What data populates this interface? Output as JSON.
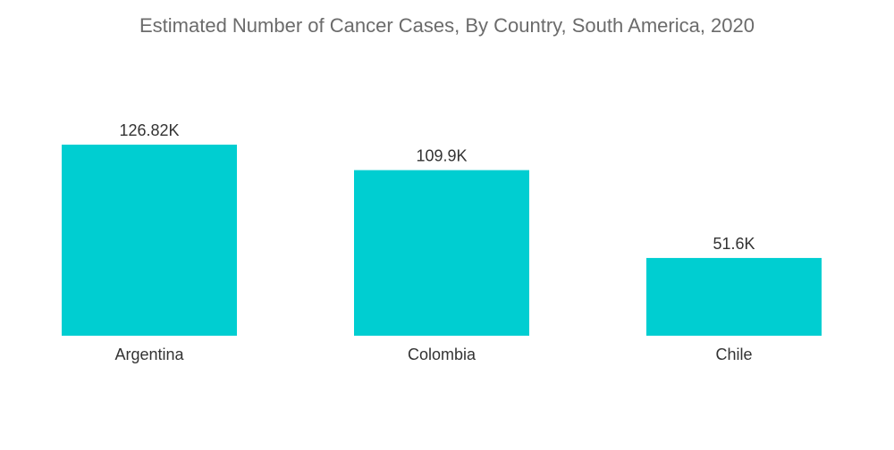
{
  "chart_data": {
    "type": "bar",
    "title": "Estimated Number of Cancer Cases, By Country, South America, 2020",
    "categories": [
      "Argentina",
      "Colombia",
      "Chile"
    ],
    "values": [
      126.82,
      109.9,
      51.6
    ],
    "value_labels": [
      "126.82K",
      "109.9K",
      "51.6K"
    ],
    "ylim": [
      0,
      126.82
    ],
    "grid": false,
    "colors": {
      "bar": "#00ced1"
    }
  }
}
